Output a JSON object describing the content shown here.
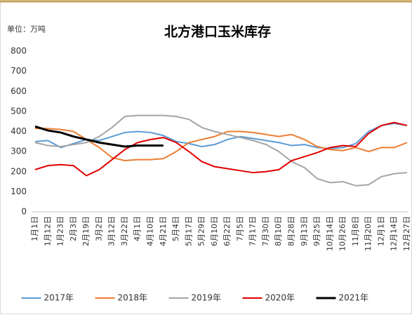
{
  "chart_data": {
    "type": "line",
    "title": "北方港口玉米库存",
    "unit_label": "单位：万吨",
    "categories": [
      "1月1日",
      "1月12日",
      "1月23日",
      "2月3日",
      "2月19日",
      "3月2日",
      "3月12日",
      "3月22日",
      "4月1日",
      "4月10日",
      "4月21日",
      "5月4日",
      "5月17日",
      "5月29日",
      "6月10日",
      "6月22日",
      "7月5日",
      "7月17日",
      "7月30日",
      "8月10日",
      "8月28日",
      "9月13日",
      "9月25日",
      "10月14日",
      "10月26日",
      "11月8日",
      "11月20日",
      "12月1日",
      "12月14日",
      "12月27日"
    ],
    "series": [
      {
        "name": "2017年",
        "color": "#5b9bd5",
        "values": [
          350,
          355,
          320,
          340,
          360,
          355,
          375,
          395,
          400,
          395,
          380,
          350,
          340,
          325,
          335,
          360,
          375,
          365,
          355,
          345,
          330,
          335,
          320,
          315,
          320,
          340,
          400,
          430,
          440,
          430
        ]
      },
      {
        "name": "2018年",
        "color": "#ed7d31",
        "values": [
          415,
          415,
          410,
          400,
          360,
          320,
          270,
          255,
          260,
          260,
          265,
          300,
          345,
          360,
          375,
          400,
          400,
          395,
          385,
          375,
          385,
          360,
          325,
          310,
          305,
          320,
          300,
          320,
          320,
          345
        ]
      },
      {
        "name": "2019年",
        "color": "#a5a5a5",
        "values": [
          345,
          330,
          325,
          335,
          345,
          375,
          420,
          475,
          480,
          480,
          480,
          475,
          460,
          420,
          400,
          385,
          370,
          355,
          335,
          300,
          250,
          220,
          165,
          145,
          150,
          130,
          135,
          175,
          190,
          195
        ]
      },
      {
        "name": "2020年",
        "color": "#e00000",
        "values": [
          210,
          230,
          235,
          230,
          180,
          210,
          260,
          310,
          345,
          360,
          370,
          345,
          300,
          250,
          225,
          215,
          205,
          195,
          200,
          210,
          255,
          275,
          295,
          320,
          330,
          325,
          390,
          430,
          445,
          430
        ]
      },
      {
        "name": "2021年",
        "color": "#000000",
        "values": [
          425,
          405,
          395,
          375,
          360,
          345,
          335,
          325,
          330,
          330,
          330,
          null,
          null,
          null,
          null,
          null,
          null,
          null,
          null,
          null,
          null,
          null,
          null,
          null,
          null,
          null,
          null,
          null,
          null,
          null
        ]
      }
    ],
    "ylim": [
      0,
      800
    ],
    "yticks": [
      0,
      100,
      200,
      300,
      400,
      500,
      600,
      700,
      800
    ],
    "grid": false
  }
}
